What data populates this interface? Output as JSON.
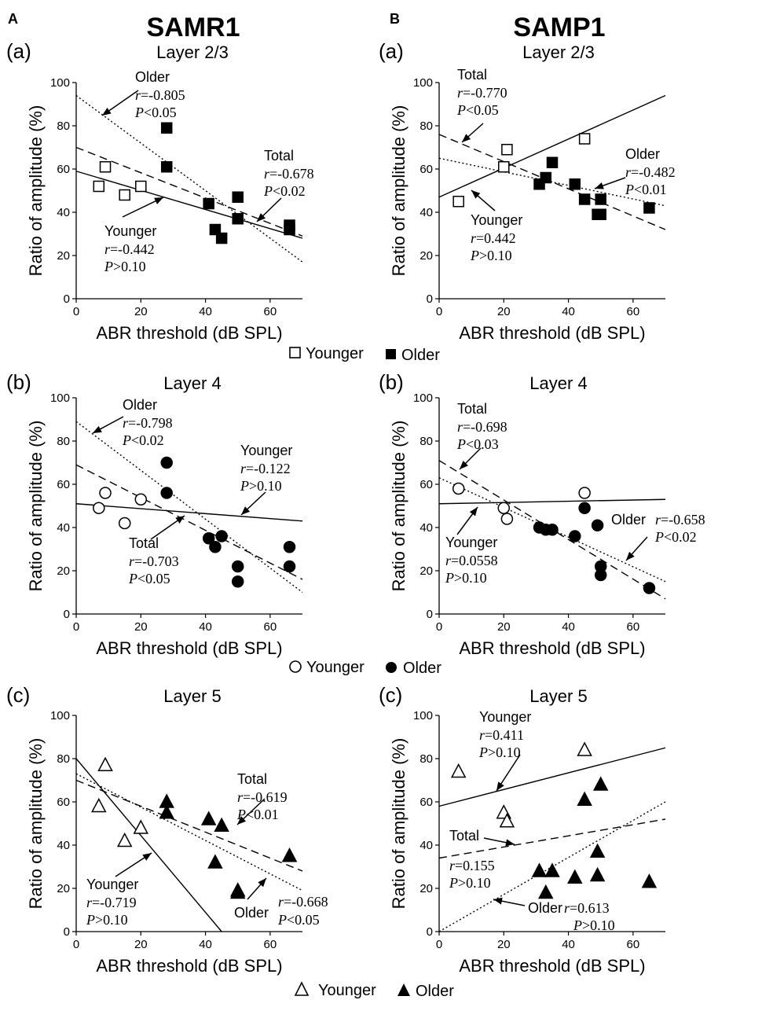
{
  "figure": {
    "col_a_letter": "A",
    "col_b_letter": "B",
    "col_a_title": "SAMR1",
    "col_b_title": "SAMP1",
    "legends": [
      {
        "marker": "square",
        "younger": "Younger",
        "older": "Older"
      },
      {
        "marker": "circle",
        "younger": "Younger",
        "older": "Older"
      },
      {
        "marker": "triangle",
        "younger": "Younger",
        "older": "Older"
      }
    ]
  },
  "chart_data": [
    {
      "type": "scatter",
      "panel_label": "(a)",
      "title": "Layer 2/3",
      "marker": "square",
      "xlabel": "ABR threshold (dB SPL)",
      "ylabel": "Ratio of amplitude (%)",
      "xlim": [
        0,
        70
      ],
      "ylim": [
        0,
        100
      ],
      "xticks": [
        0,
        20,
        40,
        60
      ],
      "yticks": [
        0,
        20,
        40,
        60,
        80,
        100
      ],
      "younger": {
        "x": [
          7,
          9,
          15,
          20
        ],
        "y": [
          52,
          61,
          48,
          52
        ]
      },
      "older": {
        "x": [
          28,
          28,
          41,
          43,
          45,
          50,
          50,
          66,
          66
        ],
        "y": [
          79,
          61,
          44,
          32,
          28,
          47,
          37,
          34,
          32
        ]
      },
      "fits": {
        "younger": {
          "style": "solid",
          "x": [
            0,
            70
          ],
          "y": [
            59,
            28
          ]
        },
        "total": {
          "style": "dashed",
          "x": [
            0,
            70
          ],
          "y": [
            70,
            29
          ]
        },
        "older": {
          "style": "dotted",
          "x": [
            0,
            70
          ],
          "y": [
            94,
            17
          ]
        }
      },
      "annotations": [
        {
          "group": "Older",
          "label": "Older",
          "r": "=-0.805",
          "p": "<0.05"
        },
        {
          "group": "Total",
          "label": "Total",
          "r": "=-0.678",
          "p": "<0.02"
        },
        {
          "group": "Younger",
          "label": "Younger",
          "r": "=-0.442",
          "p": ">0.10"
        }
      ]
    },
    {
      "type": "scatter",
      "panel_label": "(a)",
      "title": "Layer 2/3",
      "marker": "square",
      "xlabel": "ABR threshold (dB SPL)",
      "ylabel": "Ratio of amplitude (%)",
      "xlim": [
        0,
        70
      ],
      "ylim": [
        0,
        100
      ],
      "xticks": [
        0,
        20,
        40,
        60
      ],
      "yticks": [
        0,
        20,
        40,
        60,
        80,
        100
      ],
      "younger": {
        "x": [
          6,
          20,
          21,
          45
        ],
        "y": [
          45,
          61,
          69,
          74
        ]
      },
      "older": {
        "x": [
          31,
          33,
          35,
          42,
          45,
          49,
          50,
          50,
          65
        ],
        "y": [
          53,
          56,
          63,
          53,
          46,
          39,
          46,
          39,
          42
        ]
      },
      "fits": {
        "younger": {
          "style": "solid",
          "x": [
            0,
            70
          ],
          "y": [
            47,
            94
          ]
        },
        "total": {
          "style": "dashed",
          "x": [
            0,
            70
          ],
          "y": [
            76,
            32
          ]
        },
        "older": {
          "style": "dotted",
          "x": [
            0,
            70
          ],
          "y": [
            65,
            43
          ]
        }
      },
      "annotations": [
        {
          "group": "Total",
          "label": "Total",
          "r": "=-0.770",
          "p": "<0.05"
        },
        {
          "group": "Older",
          "label": "Older",
          "r": "=-0.482",
          "p": "<0.01"
        },
        {
          "group": "Younger",
          "label": "Younger",
          "r": "=0.442",
          "p": ">0.10"
        }
      ]
    },
    {
      "type": "scatter",
      "panel_label": "(b)",
      "title": "Layer 4",
      "marker": "circle",
      "xlabel": "ABR threshold (dB SPL)",
      "ylabel": "Ratio of amplitude (%)",
      "xlim": [
        0,
        70
      ],
      "ylim": [
        0,
        100
      ],
      "xticks": [
        0,
        20,
        40,
        60
      ],
      "yticks": [
        0,
        20,
        40,
        60,
        80,
        100
      ],
      "younger": {
        "x": [
          7,
          9,
          15,
          20
        ],
        "y": [
          49,
          56,
          42,
          53
        ]
      },
      "older": {
        "x": [
          28,
          28,
          41,
          43,
          45,
          50,
          50,
          66,
          66
        ],
        "y": [
          70,
          56,
          35,
          31,
          36,
          22,
          15,
          31,
          22
        ]
      },
      "fits": {
        "younger": {
          "style": "solid",
          "x": [
            0,
            70
          ],
          "y": [
            51,
            43
          ]
        },
        "total": {
          "style": "dashed",
          "x": [
            0,
            70
          ],
          "y": [
            69,
            16
          ]
        },
        "older": {
          "style": "dotted",
          "x": [
            0,
            70
          ],
          "y": [
            89,
            10
          ]
        }
      },
      "annotations": [
        {
          "group": "Older",
          "label": "Older",
          "r": "=-0.798",
          "p": "<0.02"
        },
        {
          "group": "Younger",
          "label": "Younger",
          "r": "=-0.122",
          "p": ">0.10"
        },
        {
          "group": "Total",
          "label": "Total",
          "r": "=-0.703",
          "p": "<0.05"
        }
      ]
    },
    {
      "type": "scatter",
      "panel_label": "(b)",
      "title": "Layer 4",
      "marker": "circle",
      "xlabel": "ABR threshold (dB SPL)",
      "ylabel": "Ratio of amplitude (%)",
      "xlim": [
        0,
        70
      ],
      "ylim": [
        0,
        100
      ],
      "xticks": [
        0,
        20,
        40,
        60
      ],
      "yticks": [
        0,
        20,
        40,
        60,
        80,
        100
      ],
      "younger": {
        "x": [
          6,
          20,
          21,
          45
        ],
        "y": [
          58,
          49,
          44,
          56
        ]
      },
      "older": {
        "x": [
          31,
          33,
          35,
          42,
          45,
          49,
          50,
          50,
          65
        ],
        "y": [
          40,
          39,
          39,
          36,
          49,
          41,
          18,
          22,
          12
        ]
      },
      "fits": {
        "younger": {
          "style": "solid",
          "x": [
            0,
            70
          ],
          "y": [
            51,
            53
          ]
        },
        "total": {
          "style": "dashed",
          "x": [
            0,
            70
          ],
          "y": [
            71,
            7
          ]
        },
        "older": {
          "style": "dotted",
          "x": [
            0,
            70
          ],
          "y": [
            63,
            15
          ]
        }
      },
      "annotations": [
        {
          "group": "Total",
          "label": "Total",
          "r": "=-0.698",
          "p": "<0.03"
        },
        {
          "group": "Younger",
          "label": "Younger",
          "r": "=0.0558",
          "p": ">0.10"
        },
        {
          "group": "Older",
          "label": "Older",
          "r": "=-0.658",
          "p": "<0.02"
        }
      ]
    },
    {
      "type": "scatter",
      "panel_label": "(c)",
      "title": "Layer 5",
      "marker": "triangle",
      "xlabel": "ABR threshold (dB SPL)",
      "ylabel": "Ratio of amplitude (%)",
      "xlim": [
        0,
        70
      ],
      "ylim": [
        0,
        100
      ],
      "xticks": [
        0,
        20,
        40,
        60
      ],
      "yticks": [
        0,
        20,
        40,
        60,
        80,
        100
      ],
      "younger": {
        "x": [
          7,
          9,
          15,
          20
        ],
        "y": [
          58,
          77,
          42,
          48
        ]
      },
      "older": {
        "x": [
          28,
          28,
          41,
          43,
          45,
          50,
          50,
          66,
          66
        ],
        "y": [
          60,
          55,
          52,
          32,
          49,
          18,
          19,
          35,
          35
        ]
      },
      "fits": {
        "younger": {
          "style": "solid",
          "x": [
            0,
            45
          ],
          "y": [
            80,
            0
          ]
        },
        "total": {
          "style": "dashed",
          "x": [
            0,
            70
          ],
          "y": [
            70,
            28
          ]
        },
        "older": {
          "style": "dotted",
          "x": [
            0,
            70
          ],
          "y": [
            73,
            19
          ]
        }
      },
      "annotations": [
        {
          "group": "Total",
          "label": "Total",
          "r": "=-0.619",
          "p": "<0.01"
        },
        {
          "group": "Younger",
          "label": "Younger",
          "r": "=-0.719",
          "p": ">0.10"
        },
        {
          "group": "Older",
          "label": "Older",
          "r": "=-0.668",
          "p": "<0.05"
        }
      ]
    },
    {
      "type": "scatter",
      "panel_label": "(c)",
      "title": "Layer 5",
      "marker": "triangle",
      "xlabel": "ABR threshold (dB SPL)",
      "ylabel": "Ratio of amplitude (%)",
      "xlim": [
        0,
        70
      ],
      "ylim": [
        0,
        100
      ],
      "xticks": [
        0,
        20,
        40,
        60
      ],
      "yticks": [
        0,
        20,
        40,
        60,
        80,
        100
      ],
      "younger": {
        "x": [
          6,
          20,
          21,
          45
        ],
        "y": [
          74,
          55,
          51,
          84
        ]
      },
      "older": {
        "x": [
          31,
          33,
          35,
          42,
          45,
          49,
          49,
          50,
          65
        ],
        "y": [
          28,
          18,
          28,
          25,
          61,
          37,
          26,
          68,
          23
        ]
      },
      "fits": {
        "younger": {
          "style": "solid",
          "x": [
            0,
            70
          ],
          "y": [
            58,
            85
          ]
        },
        "total": {
          "style": "dashed",
          "x": [
            0,
            70
          ],
          "y": [
            34,
            52
          ]
        },
        "older": {
          "style": "dotted",
          "x": [
            0,
            70
          ],
          "y": [
            0,
            60
          ]
        }
      },
      "annotations": [
        {
          "group": "Younger",
          "label": "Younger",
          "r": "=0.411",
          "p": ">0.10"
        },
        {
          "group": "Total",
          "label": "Total",
          "r": "=0.155",
          "p": ">0.10"
        },
        {
          "group": "Older",
          "label": "Older",
          "r": "=0.613",
          "p": ">0.10"
        }
      ]
    }
  ]
}
